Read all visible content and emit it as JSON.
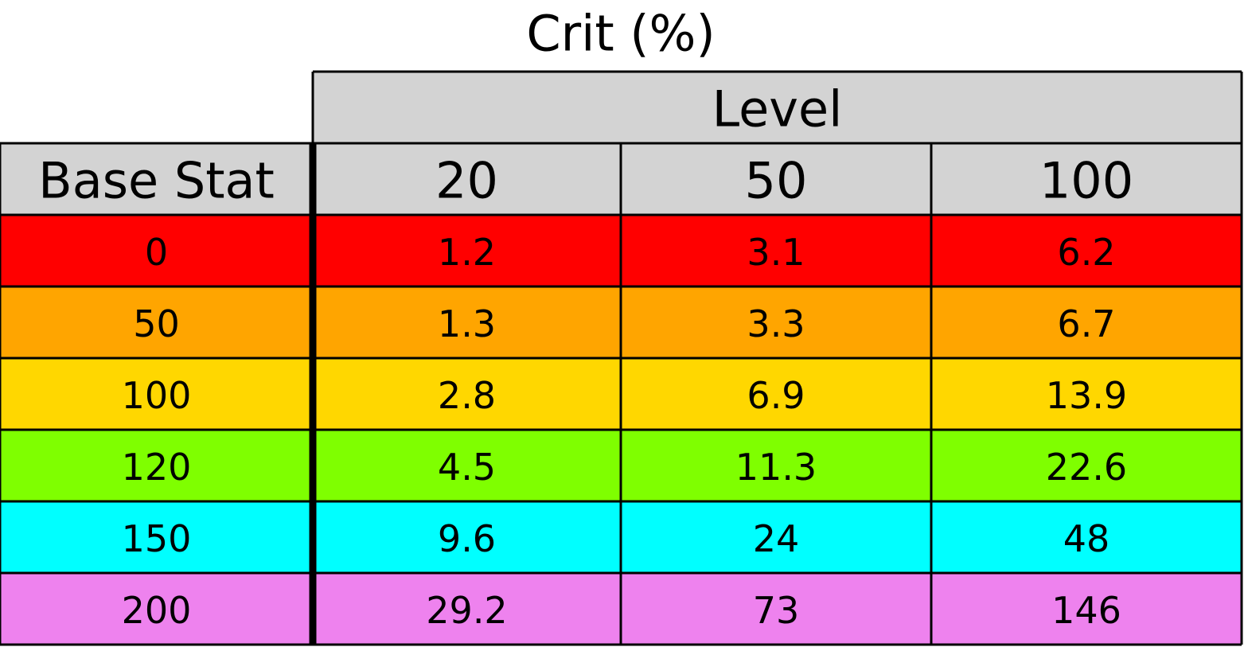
{
  "chart_data": {
    "type": "table",
    "title": "Crit (%)",
    "column_group_label": "Level",
    "row_header_label": "Base Stat",
    "columns": [
      "20",
      "50",
      "100"
    ],
    "header_color": "#d3d3d3",
    "rows": [
      {
        "base_stat": "0",
        "color": "#ff0000",
        "values": [
          "1.2",
          "3.1",
          "6.2"
        ]
      },
      {
        "base_stat": "50",
        "color": "#ffa500",
        "values": [
          "1.3",
          "3.3",
          "6.7"
        ]
      },
      {
        "base_stat": "100",
        "color": "#ffd700",
        "values": [
          "2.8",
          "6.9",
          "13.9"
        ]
      },
      {
        "base_stat": "120",
        "color": "#7fff00",
        "values": [
          "4.5",
          "11.3",
          "22.6"
        ]
      },
      {
        "base_stat": "150",
        "color": "#00ffff",
        "values": [
          "9.6",
          "24",
          "48"
        ]
      },
      {
        "base_stat": "200",
        "color": "#ee82ee",
        "values": [
          "29.2",
          "73",
          "146"
        ]
      }
    ]
  }
}
